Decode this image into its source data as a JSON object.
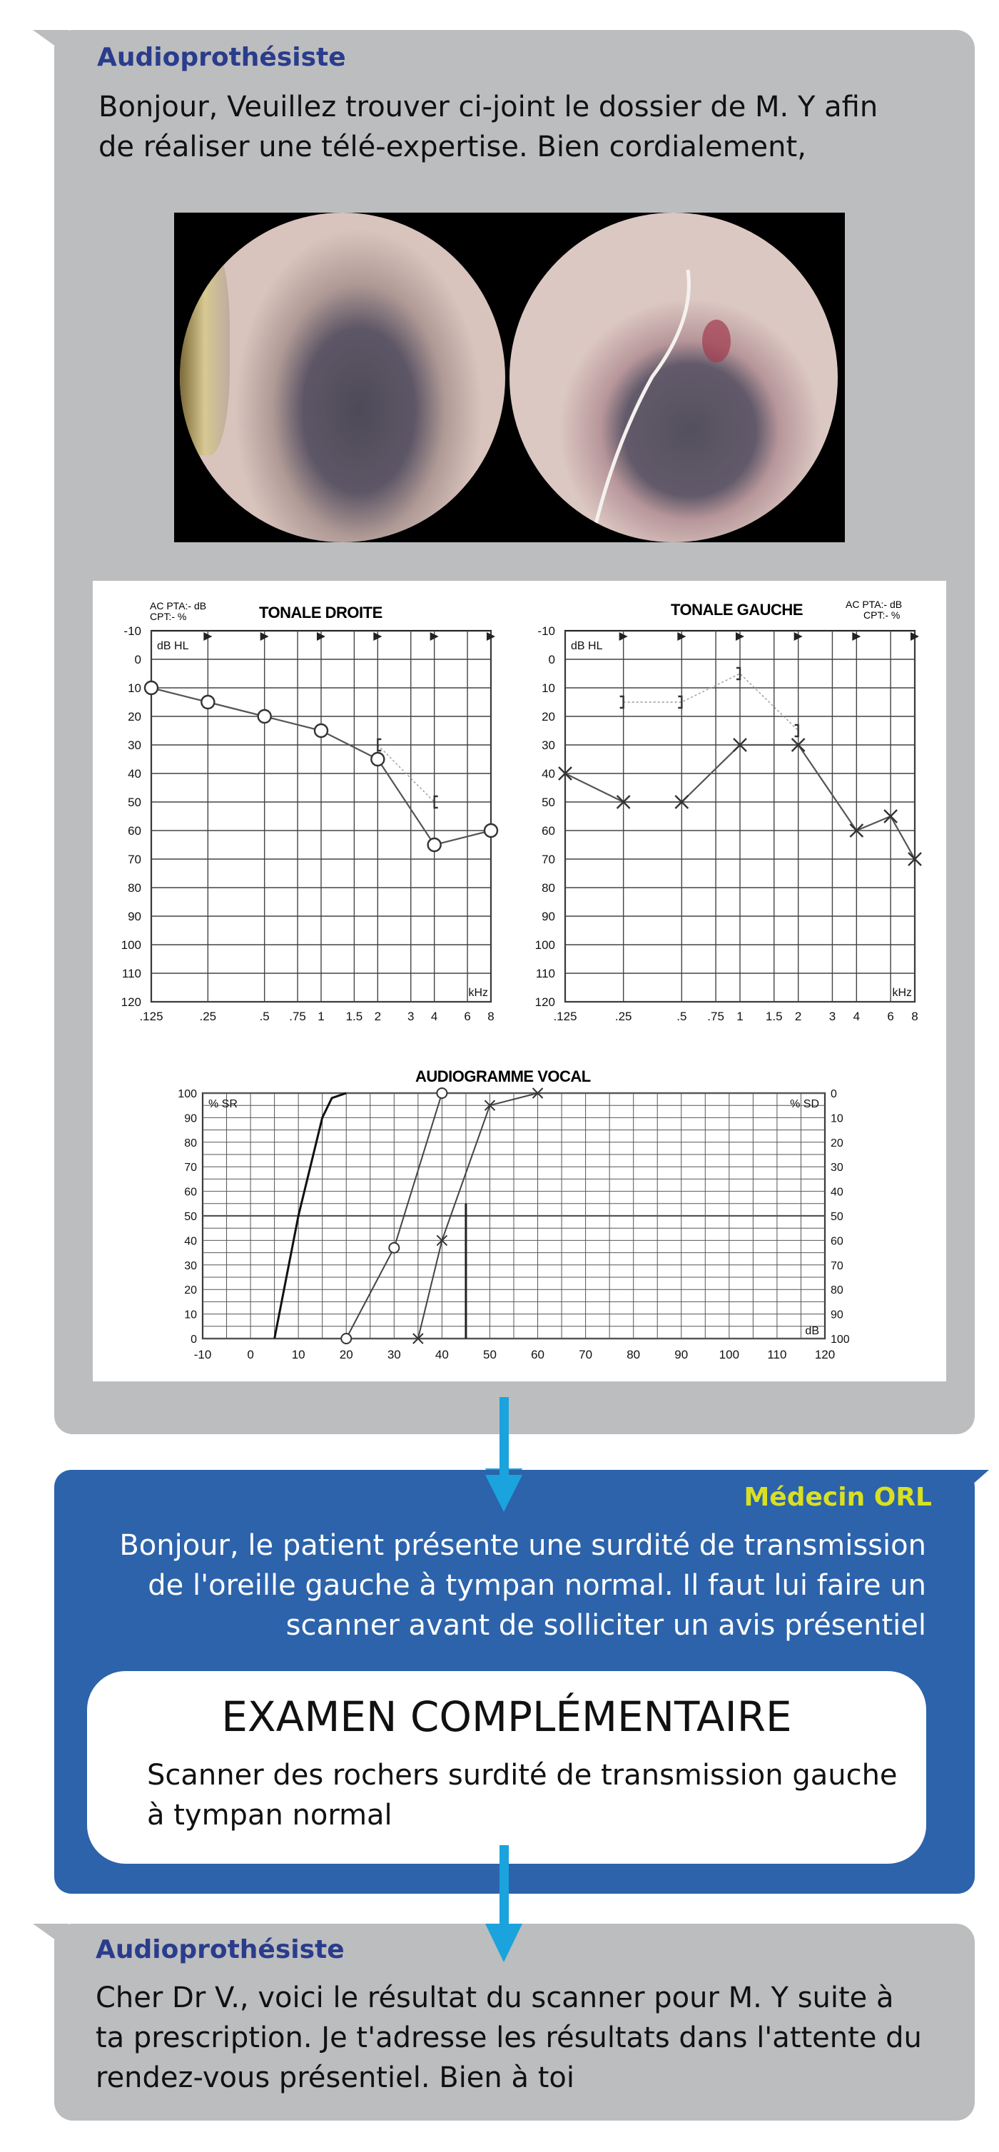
{
  "colors": {
    "grey_bubble": "#bcbdbe",
    "blue_bubble": "#2c63ab",
    "arrow": "#1aa3dc",
    "role_audio": "#2a3c8c",
    "role_orl": "#d9e021"
  },
  "message1": {
    "role": "Audioprothésiste",
    "text_lines": [
      "Bonjour, Veuillez trouver ci-joint le dossier de M. Y afin",
      "de réaliser une télé-expertise. Bien cordialement,"
    ],
    "otoscopy_images": [
      "ear-canal-right-photo",
      "ear-canal-left-photo"
    ]
  },
  "audiogram": {
    "right": {
      "title": "TONALE DROITE",
      "corner_lines": [
        "AC PTA:- dB",
        "CPT:- %"
      ],
      "unit": "dB HL",
      "xunit": "kHz",
      "y_ticks": [
        "-10",
        "0",
        "10",
        "20",
        "30",
        "40",
        "50",
        "60",
        "70",
        "80",
        "90",
        "100",
        "110",
        "120"
      ],
      "x_ticks": [
        ".125",
        ".25",
        ".5",
        ".75",
        "1",
        "1.5",
        "2",
        "3",
        "4",
        "6",
        "8"
      ]
    },
    "left": {
      "title": "TONALE GAUCHE",
      "corner_lines": [
        "AC PTA:- dB",
        "CPT:- %"
      ],
      "unit": "dB HL",
      "xunit": "kHz",
      "y_ticks": [
        "-10",
        "0",
        "10",
        "20",
        "30",
        "40",
        "50",
        "60",
        "70",
        "80",
        "90",
        "100",
        "110",
        "120"
      ],
      "x_ticks": [
        ".125",
        ".25",
        ".5",
        ".75",
        "1",
        "1.5",
        "2",
        "3",
        "4",
        "6",
        "8"
      ]
    },
    "vocal": {
      "title": "AUDIOGRAMME VOCAL",
      "left_label": "% SR",
      "right_label": "% SD",
      "xunit": "dB",
      "left_ticks": [
        "100",
        "90",
        "80",
        "70",
        "60",
        "50",
        "40",
        "30",
        "20",
        "10",
        "0"
      ],
      "right_ticks": [
        "0",
        "10",
        "20",
        "30",
        "40",
        "50",
        "60",
        "70",
        "80",
        "90",
        "100"
      ],
      "x_ticks": [
        "-10",
        "0",
        "10",
        "20",
        "30",
        "40",
        "50",
        "60",
        "70",
        "80",
        "90",
        "100",
        "110",
        "120"
      ]
    }
  },
  "chart_data": [
    {
      "type": "line",
      "title": "TONALE DROITE",
      "ylabel": "dB HL",
      "xlabel": "kHz",
      "ylim": [
        120,
        -10
      ],
      "x": [
        0.125,
        0.25,
        0.5,
        1,
        2,
        4,
        8
      ],
      "series": [
        {
          "name": "",
          "marker": "O",
          "values": [
            10,
            15,
            20,
            25,
            35,
            65,
            60
          ]
        },
        {
          "name": "",
          "marker": "[",
          "x": [
            2,
            4
          ],
          "values": [
            30,
            50
          ]
        }
      ]
    },
    {
      "type": "line",
      "title": "TONALE GAUCHE",
      "ylabel": "dB HL",
      "xlabel": "kHz",
      "ylim": [
        120,
        -10
      ],
      "x": [
        0.125,
        0.25,
        0.5,
        1,
        2,
        4,
        6,
        8
      ],
      "series": [
        {
          "name": "",
          "marker": "X",
          "values": [
            40,
            50,
            50,
            30,
            30,
            60,
            55,
            70
          ]
        },
        {
          "name": "",
          "marker": "]",
          "x": [
            0.25,
            0.5,
            1,
            2
          ],
          "values": [
            15,
            15,
            5,
            25
          ]
        }
      ]
    },
    {
      "type": "line",
      "title": "AUDIOGRAMME VOCAL",
      "xlabel": "dB",
      "ylabel": "% SR",
      "xlim": [
        -10,
        120
      ],
      "ylim": [
        0,
        100
      ],
      "series": [
        {
          "name": "",
          "marker": "none",
          "x": [
            5,
            10,
            15,
            17,
            20
          ],
          "values": [
            0,
            50,
            90,
            98,
            100
          ]
        },
        {
          "name": "",
          "marker": "O",
          "x": [
            20,
            30,
            40
          ],
          "values": [
            0,
            37,
            100
          ]
        },
        {
          "name": "",
          "marker": "X",
          "x": [
            35,
            40,
            50,
            60
          ],
          "values": [
            0,
            40,
            95,
            100
          ]
        }
      ]
    }
  ],
  "message2": {
    "role": "Médecin ORL",
    "text_lines": [
      "Bonjour, le patient présente une surdité de transmission",
      "de l'oreille gauche à tympan normal. Il faut lui faire un",
      "scanner avant de solliciter un avis présentiel"
    ],
    "exam_title": "EXAMEN COMPLÉMENTAIRE",
    "exam_lines": [
      "Scanner des rochers surdité de transmission gauche",
      "à tympan normal"
    ]
  },
  "message3": {
    "role": "Audioprothésiste",
    "text_lines": [
      "Cher Dr V., voici le résultat du scanner pour M. Y suite à",
      "ta prescription. Je t'adresse les résultats dans l'attente du",
      "rendez-vous présentiel. Bien à toi"
    ]
  }
}
